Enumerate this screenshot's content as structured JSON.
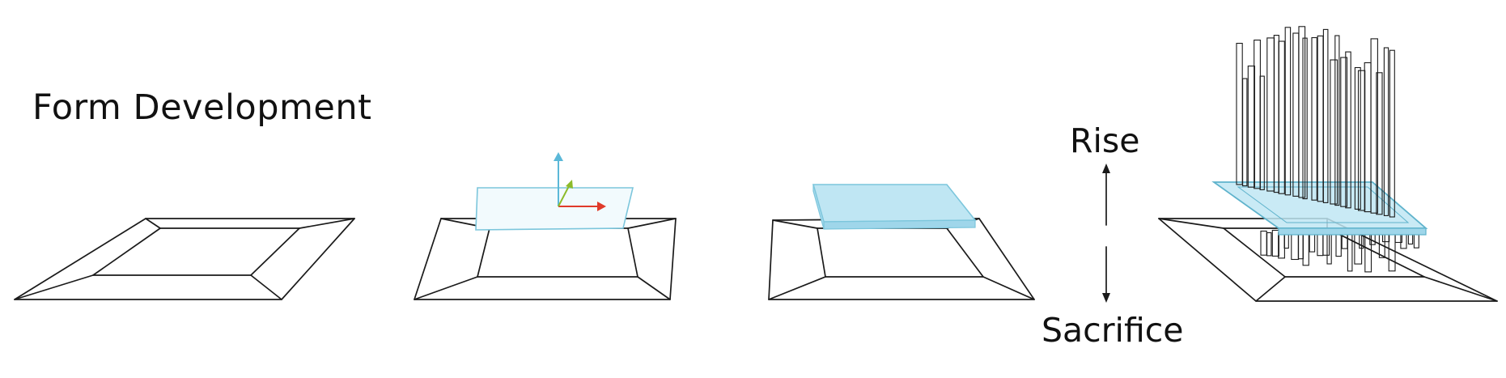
{
  "title": "Form Development",
  "labels": {
    "rise": "Rise",
    "sacrifice": "Sacrifice"
  },
  "colors": {
    "line": "#1a1a1a",
    "plane_fill": "#bfe6f3",
    "plane_edge": "#7cc6dc",
    "axis_x": "#e03a2a",
    "axis_y": "#8dbb2a",
    "axis_z": "#5bb8d8"
  },
  "stages": [
    {
      "name": "frame"
    },
    {
      "name": "frame with ground plane and axes"
    },
    {
      "name": "frame with raised slab"
    },
    {
      "name": "frame with slab and vertical towers"
    }
  ]
}
